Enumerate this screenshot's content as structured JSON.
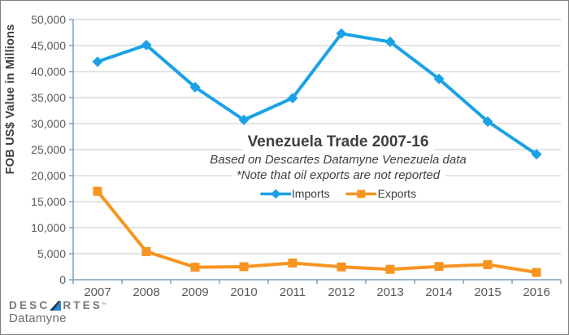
{
  "chart_data": {
    "type": "line",
    "title": "Venezuela Trade 2007-16",
    "subtitle": "Based on Descartes Datamyne Venezuela data",
    "note": "*Note that oil exports are not reported",
    "ylabel": "FOB US$ Value in Millions",
    "categories": [
      "2007",
      "2008",
      "2009",
      "2010",
      "2011",
      "2012",
      "2013",
      "2014",
      "2015",
      "2016"
    ],
    "ylim": [
      0,
      50000
    ],
    "ystep": 5000,
    "grid": true,
    "legend_position": "center-inside",
    "series": [
      {
        "name": "Imports",
        "marker": "diamond",
        "color": "#1ba2e5",
        "values": [
          41900,
          45100,
          37000,
          30700,
          34900,
          47300,
          45700,
          38600,
          30400,
          24100
        ]
      },
      {
        "name": "Exports",
        "marker": "square",
        "color": "#f79420",
        "values": [
          17000,
          5400,
          2400,
          2500,
          3200,
          2450,
          2000,
          2550,
          2900,
          1400
        ]
      }
    ]
  },
  "colors": {
    "axis_line": "#7f9dbe",
    "gridline": "#c6c8ca",
    "tick_label": "#595959",
    "title_text": "#3f3f3f",
    "logo_gray": "#77787b",
    "logo_triangle_dark": "#17355c",
    "logo_triangle_light": "#2e86c4"
  },
  "logo": {
    "brand_before": "DESC",
    "brand_after": "RTES",
    "brand_mark": "™",
    "brand_sub": "Datamyne"
  }
}
